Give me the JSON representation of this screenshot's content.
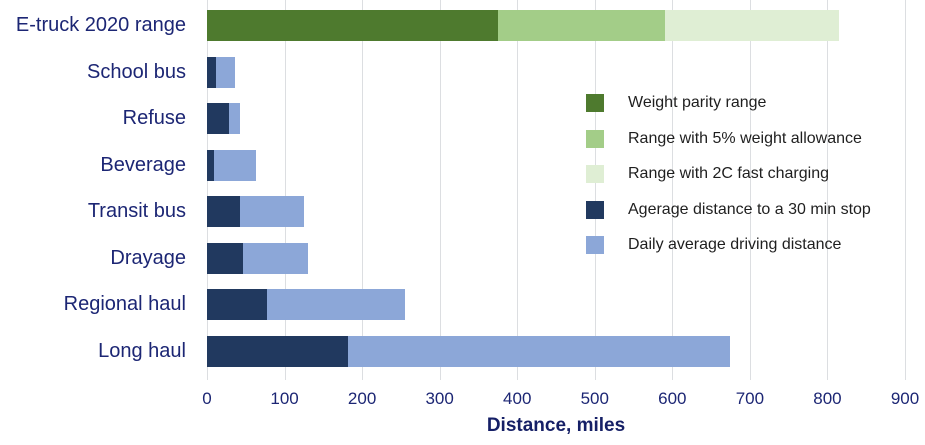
{
  "chart_data": {
    "type": "bar",
    "orientation": "horizontal",
    "stacked": true,
    "title": "",
    "xlabel": "Distance, miles",
    "ylabel": "",
    "xlim": [
      0,
      900
    ],
    "grid": "vertical",
    "x_ticks": [
      0,
      100,
      200,
      300,
      400,
      500,
      600,
      700,
      800,
      900
    ],
    "categories": [
      "E-truck 2020 range",
      "School bus",
      "Refuse",
      "Beverage",
      "Transit bus",
      "Drayage",
      "Regional haul",
      "Long haul"
    ],
    "series_colors": {
      "Weight parity range": "#4e7a2e",
      "Range with 5% weight allowance": "#a3cd88",
      "Range with 2C fast charging": "#dfeed4",
      "Agerage distance to a 30 min stop": "#21395f",
      "Daily average driving distance": "#8ca7d8"
    },
    "legend_items": [
      "Weight parity range",
      "Range with 5% weight allowance",
      "Range with 2C fast charging",
      "Agerage distance to a 30 min stop",
      "Daily average driving distance"
    ],
    "rows": [
      {
        "category": "E-truck 2020 range",
        "segments": [
          {
            "series": "Weight parity range",
            "start": 0,
            "end": 375
          },
          {
            "series": "Range with 5% weight allowance",
            "start": 375,
            "end": 590
          },
          {
            "series": "Range with 2C fast charging",
            "start": 590,
            "end": 815
          }
        ]
      },
      {
        "category": "School bus",
        "segments": [
          {
            "series": "Agerage distance to a 30 min stop",
            "start": 0,
            "end": 11
          },
          {
            "series": "Daily average driving distance",
            "start": 11,
            "end": 36
          }
        ]
      },
      {
        "category": "Refuse",
        "segments": [
          {
            "series": "Agerage distance to a 30 min stop",
            "start": 0,
            "end": 29
          },
          {
            "series": "Daily average driving distance",
            "start": 29,
            "end": 42
          }
        ]
      },
      {
        "category": "Beverage",
        "segments": [
          {
            "series": "Agerage distance to a 30 min stop",
            "start": 0,
            "end": 9
          },
          {
            "series": "Daily average driving distance",
            "start": 9,
            "end": 63
          }
        ]
      },
      {
        "category": "Transit bus",
        "segments": [
          {
            "series": "Agerage distance to a 30 min stop",
            "start": 0,
            "end": 43
          },
          {
            "series": "Daily average driving distance",
            "start": 43,
            "end": 125
          }
        ]
      },
      {
        "category": "Drayage",
        "segments": [
          {
            "series": "Agerage distance to a 30 min stop",
            "start": 0,
            "end": 47
          },
          {
            "series": "Daily average driving distance",
            "start": 47,
            "end": 130
          }
        ]
      },
      {
        "category": "Regional haul",
        "segments": [
          {
            "series": "Agerage distance to a 30 min stop",
            "start": 0,
            "end": 77
          },
          {
            "series": "Daily average driving distance",
            "start": 77,
            "end": 255
          }
        ]
      },
      {
        "category": "Long haul",
        "segments": [
          {
            "series": "Agerage distance to a 30 min stop",
            "start": 0,
            "end": 182
          },
          {
            "series": "Daily average driving distance",
            "start": 182,
            "end": 675
          }
        ]
      }
    ]
  },
  "styles": {
    "background": "#ffffff",
    "category_label_color": "#1c2674",
    "tick_label_color": "#1c2674",
    "axis_title_color": "#151f66",
    "legend_text_color": "#1f1f1f",
    "grid_color": "#dcdee1"
  }
}
